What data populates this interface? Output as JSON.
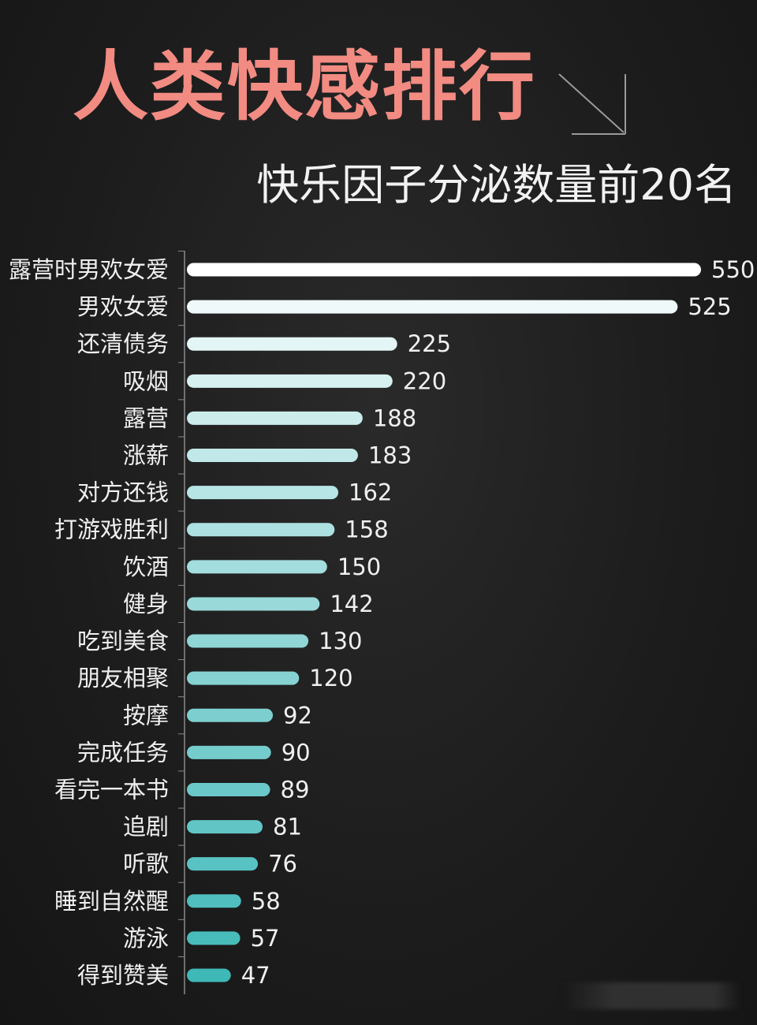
{
  "header": {
    "title": "人类快感排行",
    "subtitle": "快乐因子分泌数量前20名"
  },
  "colors": {
    "background": "#1e1e1e",
    "title": "#f28b82",
    "text": "#f0f0f0",
    "bar_top": "#ffffff",
    "bar_bottom": "#3fb8b8"
  },
  "chart_data": {
    "type": "bar",
    "orientation": "horizontal",
    "title": "人类快感排行",
    "subtitle": "快乐因子分泌数量前20名",
    "categories": [
      "露营时男欢女爱",
      "男欢女爱",
      "还清债务",
      "吸烟",
      "露营",
      "涨薪",
      "对方还钱",
      "打游戏胜利",
      "饮酒",
      "健身",
      "吃到美食",
      "朋友相聚",
      "按摩",
      "完成任务",
      "看完一本书",
      "追剧",
      "听歌",
      "睡到自然醒",
      "游泳",
      "得到赞美"
    ],
    "values": [
      550,
      525,
      225,
      220,
      188,
      183,
      162,
      158,
      150,
      142,
      130,
      120,
      92,
      90,
      89,
      81,
      76,
      58,
      57,
      47
    ],
    "xlim": [
      0,
      550
    ],
    "grid": false,
    "legend": "none",
    "xlabel": "",
    "ylabel": ""
  }
}
